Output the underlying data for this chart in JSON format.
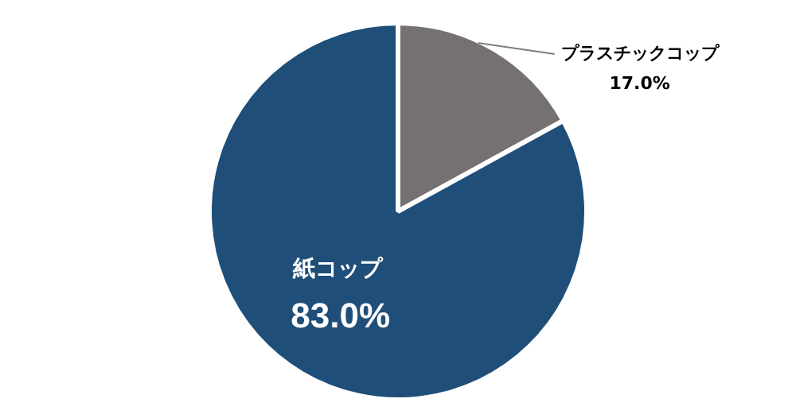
{
  "chart_data": {
    "type": "pie",
    "categories": [
      "プラスチックコップ",
      "紙コップ"
    ],
    "values": [
      17.0,
      83.0
    ],
    "colors": [
      "#767171",
      "#1f4e79"
    ],
    "value_labels": [
      "17.0%",
      "83.0%"
    ],
    "legend": false
  }
}
